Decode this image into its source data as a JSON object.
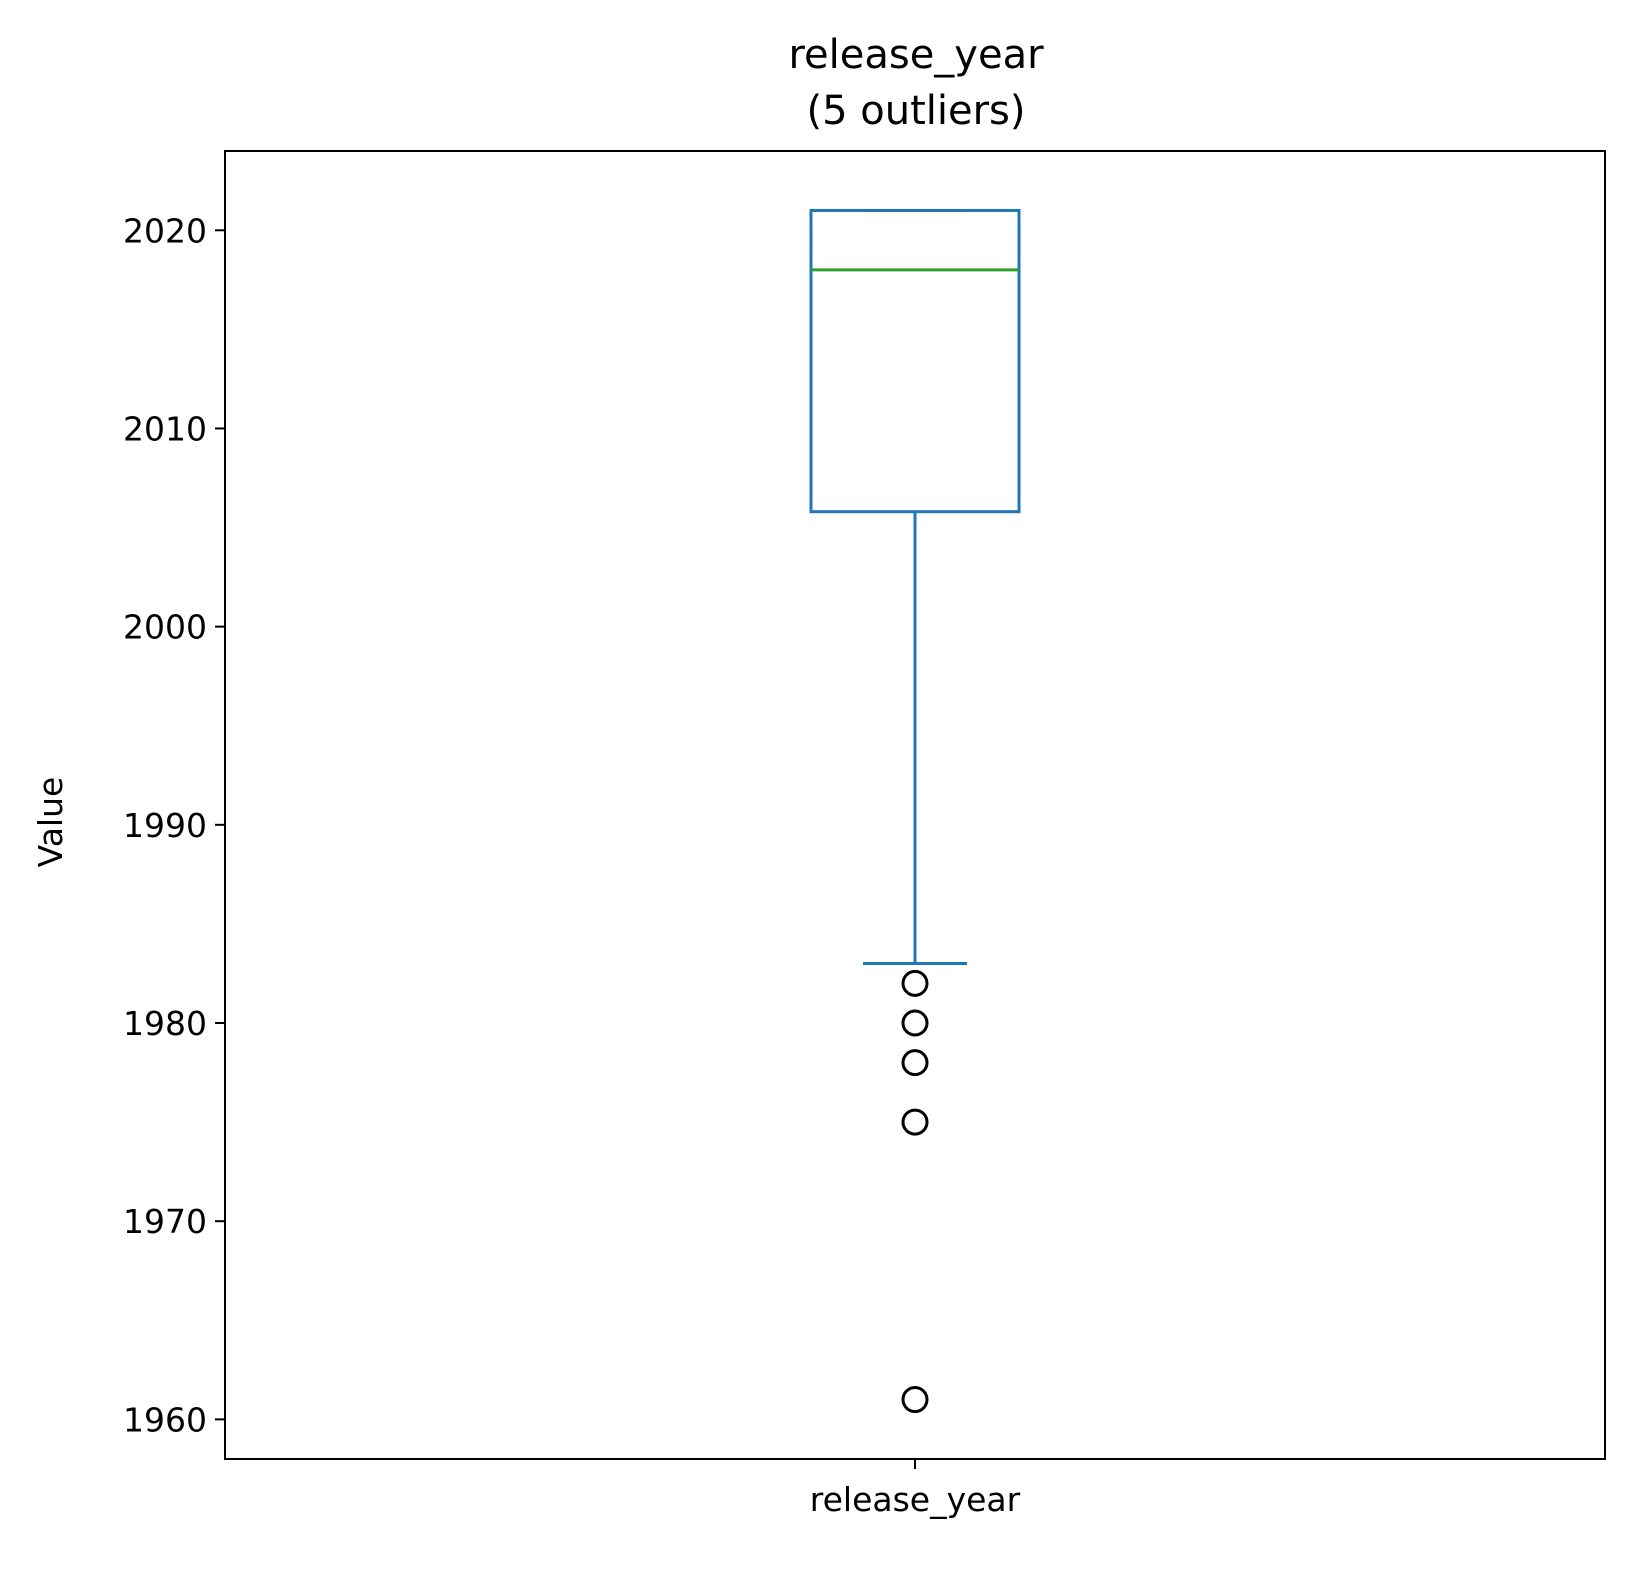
{
  "chart_data": {
    "type": "box",
    "title": "release_year",
    "subtitle": "(5 outliers)",
    "xlabel": "",
    "ylabel": "Value",
    "categories": [
      "release_year"
    ],
    "ylim": [
      1958,
      2024
    ],
    "yticks": [
      1960,
      1970,
      1980,
      1990,
      2000,
      2010,
      2020
    ],
    "grid": false,
    "box": {
      "whisker_low": 1983,
      "q1": 2005.8,
      "median": 2018,
      "q3": 2021,
      "whisker_high": 2021
    },
    "outliers": [
      1982,
      1980,
      1978,
      1975,
      1961
    ],
    "colors": {
      "box": "#1f77b4",
      "median": "#2ca02c",
      "outlier": "#000000"
    }
  }
}
